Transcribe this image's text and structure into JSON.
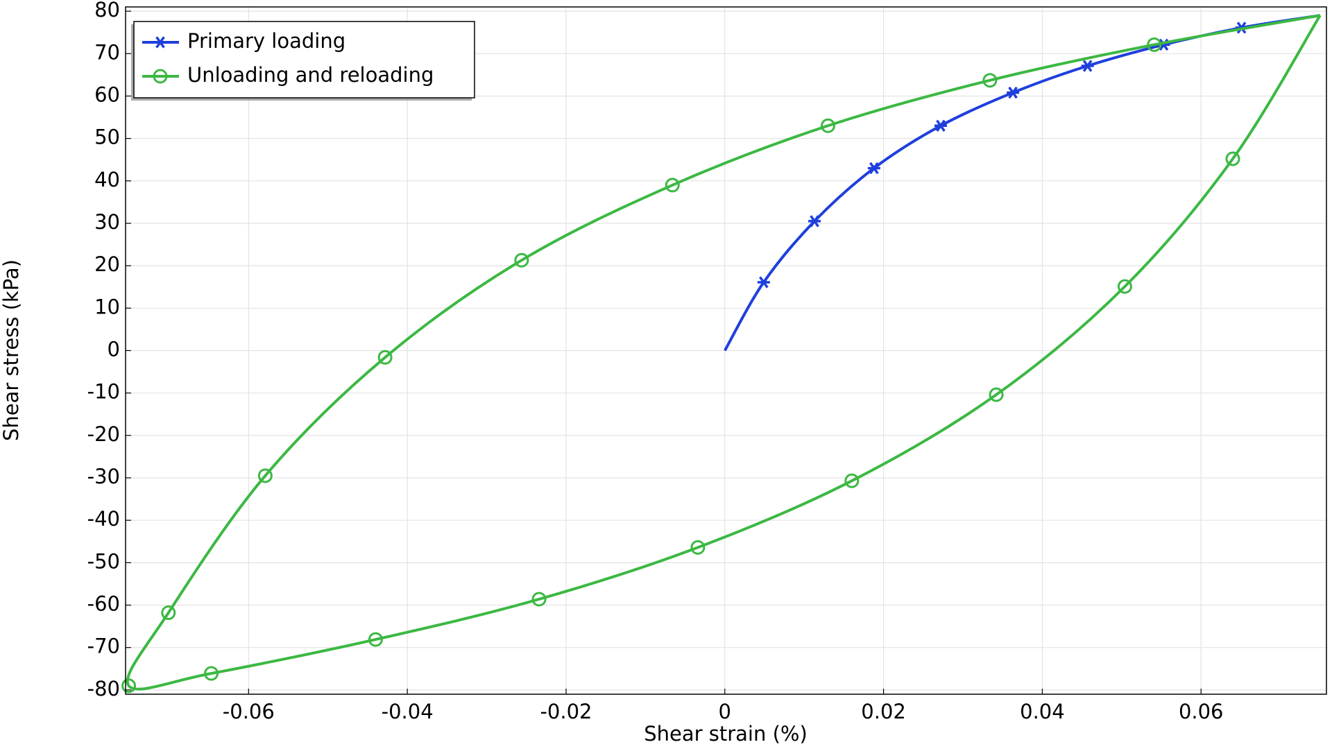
{
  "chart_data": {
    "type": "line",
    "xlabel": "Shear strain (%)",
    "ylabel": "Shear stress (kPa)",
    "xlim": [
      -0.0755,
      0.0758
    ],
    "ylim": [
      -81,
      81
    ],
    "xticks": [
      -0.06,
      -0.04,
      -0.02,
      0,
      0.02,
      0.04,
      0.06
    ],
    "yticks": [
      -80,
      -70,
      -60,
      -50,
      -40,
      -30,
      -20,
      -10,
      0,
      10,
      20,
      30,
      40,
      50,
      60,
      70,
      80
    ],
    "grid": true,
    "legend": "upper left",
    "series": [
      {
        "name": "Primary loading",
        "color": "#1f3fdc",
        "marker": "asterisk",
        "x": [
          0,
          0.0049,
          0.0113,
          0.0188,
          0.0272,
          0.0363,
          0.0457,
          0.0553,
          0.0651,
          0.075
        ],
        "values": [
          0,
          16.1,
          30.5,
          43,
          53,
          60.8,
          67.1,
          72.1,
          76.1,
          79
        ]
      },
      {
        "name": "Unloading and reloading",
        "color": "#3cb843",
        "marker": "circle",
        "x": [
          0.075,
          0.0541,
          0.0334,
          0.013,
          -0.0066,
          -0.0256,
          -0.0428,
          -0.0579,
          -0.0701,
          -0.0751,
          -0.0647,
          -0.044,
          -0.0234,
          -0.0034,
          0.016,
          0.0342,
          0.0504,
          0.064,
          0.075
        ],
        "values": [
          79,
          72.1,
          63.7,
          53,
          39,
          21.3,
          -1.6,
          -29.5,
          -61.8,
          -79,
          -76.1,
          -68.1,
          -58.6,
          -46.4,
          -30.7,
          -10.4,
          15.1,
          45.2,
          79
        ]
      }
    ]
  }
}
